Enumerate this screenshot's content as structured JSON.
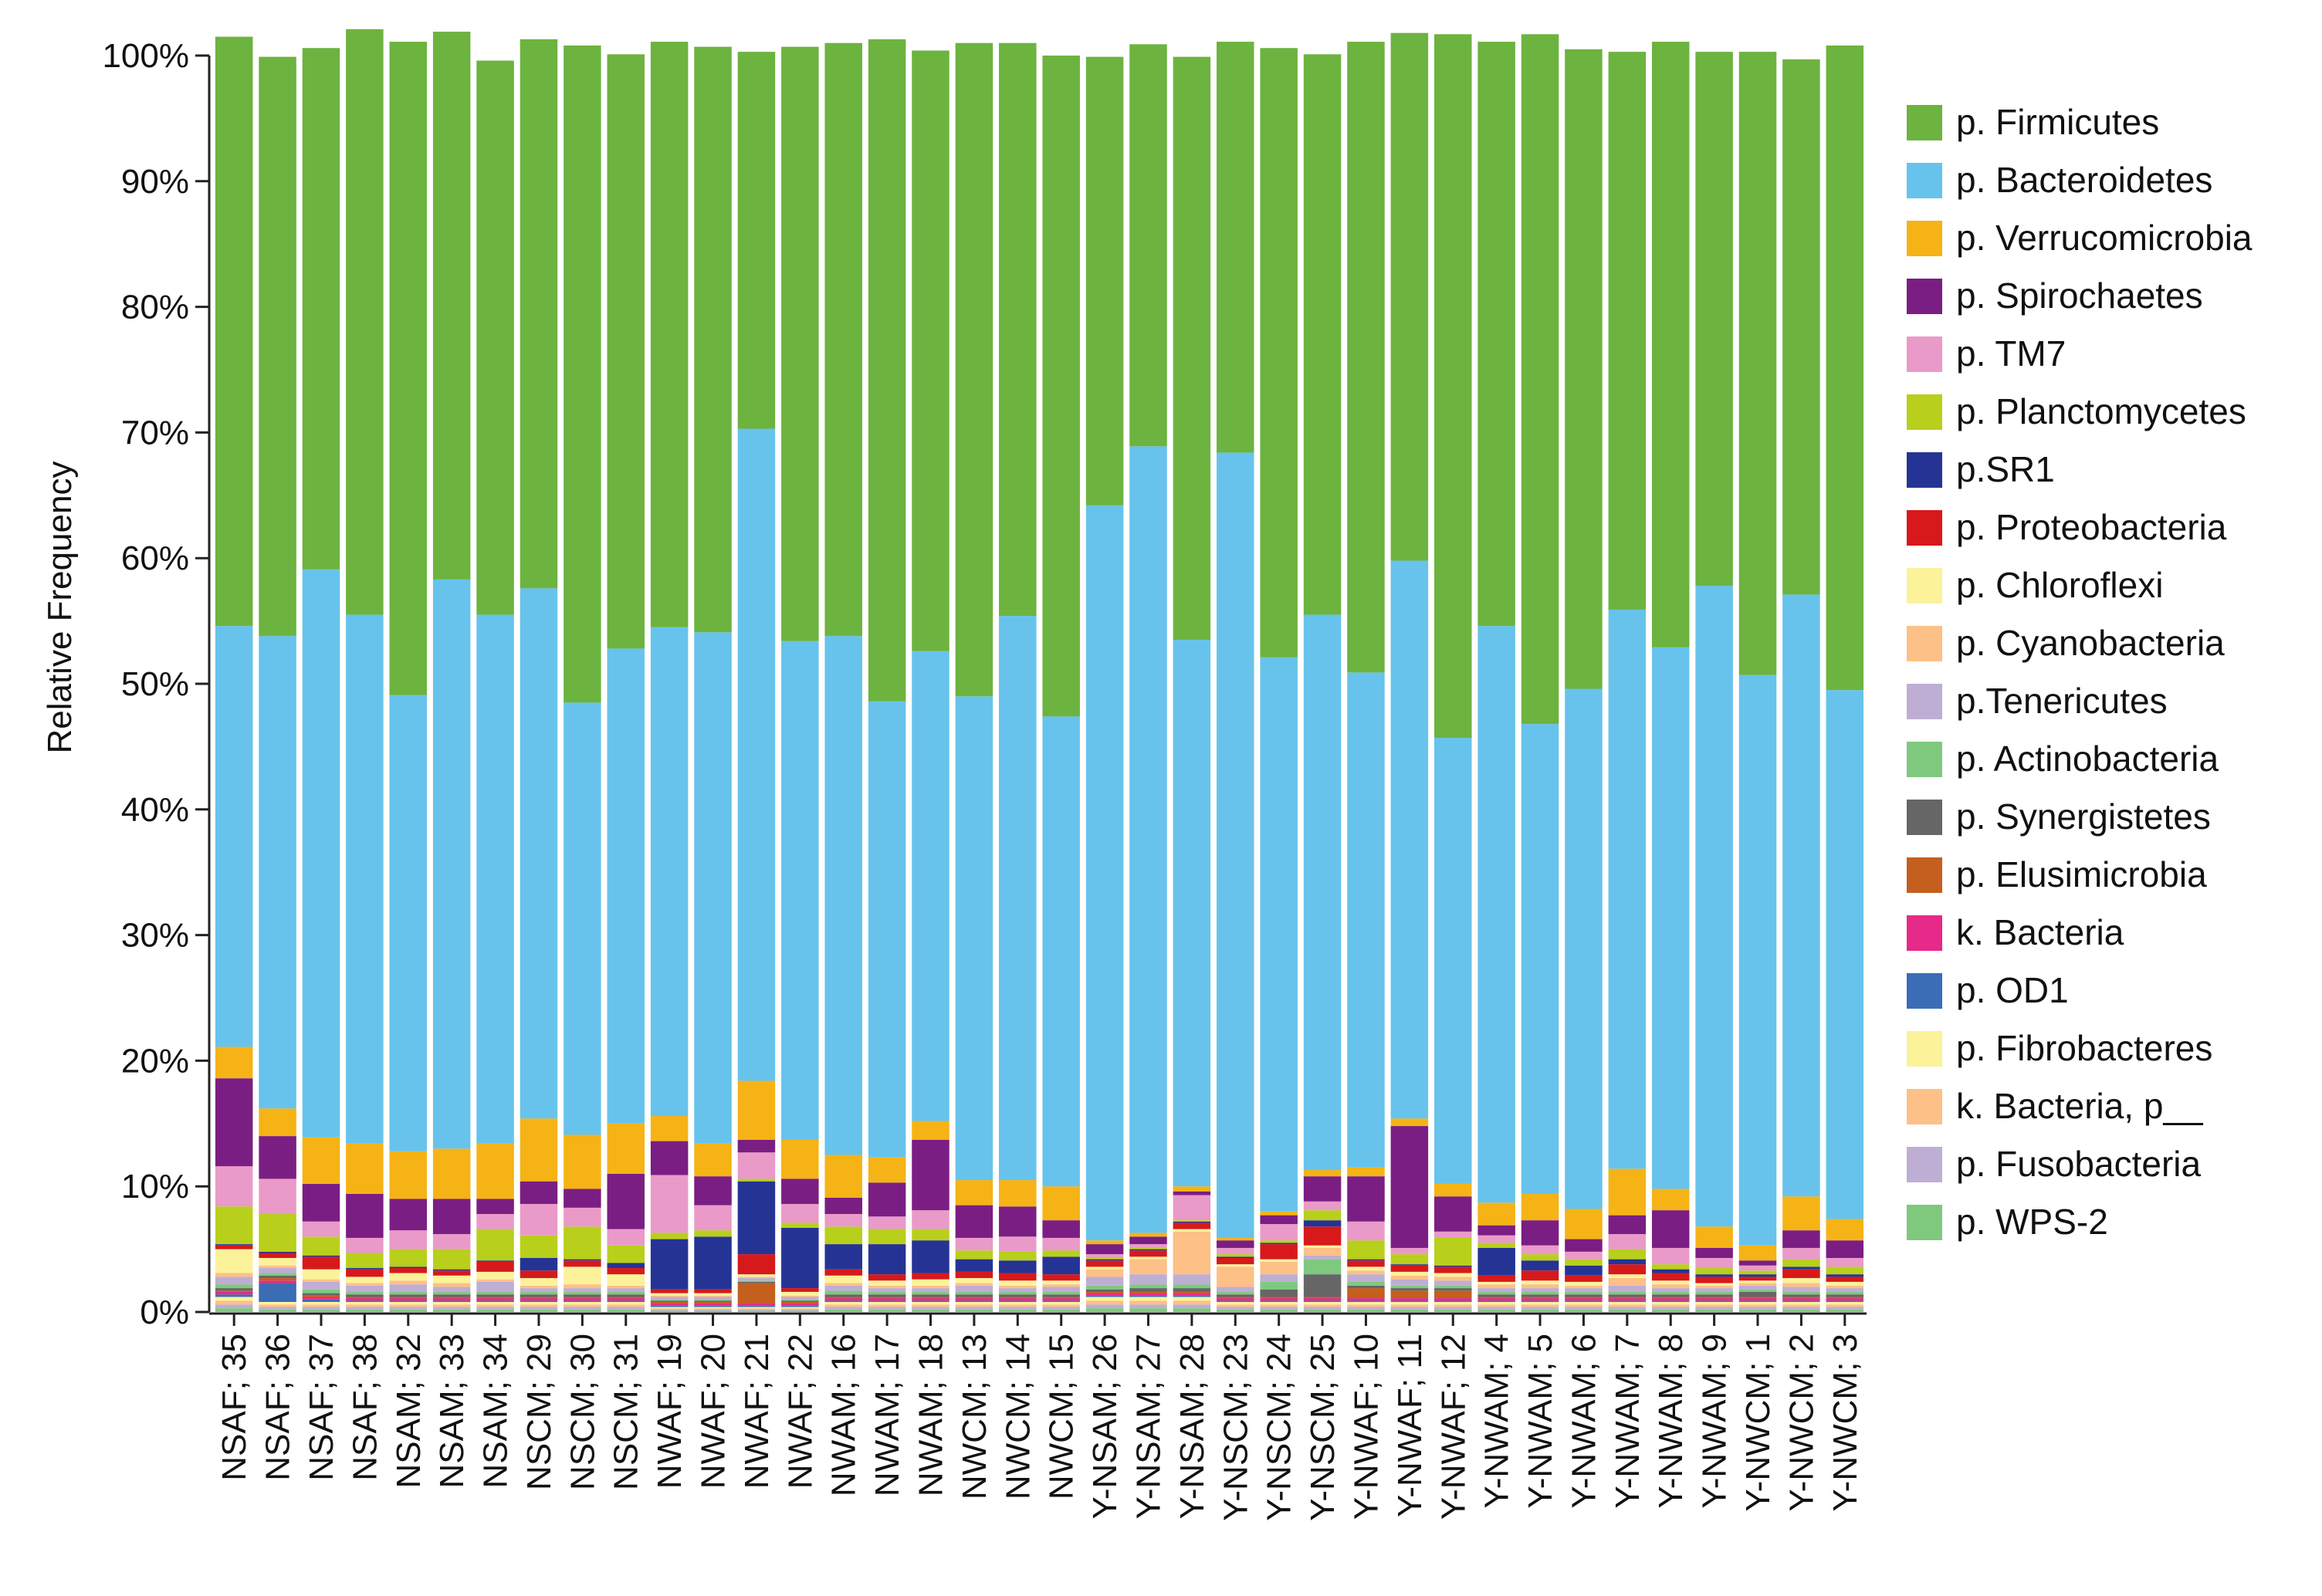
{
  "chart_data": {
    "type": "bar",
    "stacked": true,
    "normalized": true,
    "title": "",
    "xlabel": "",
    "ylabel": "Relative Frequency",
    "ylim": [
      0,
      100
    ],
    "yticks": [
      0,
      10,
      20,
      30,
      40,
      50,
      60,
      70,
      80,
      90,
      100
    ],
    "ytick_labels": [
      "0%",
      "10%",
      "20%",
      "30%",
      "40%",
      "50%",
      "60%",
      "70%",
      "80%",
      "90%",
      "100%"
    ],
    "legend_position": "right",
    "categories": [
      "NSAF; 35",
      "NSAF; 36",
      "NSAF; 37",
      "NSAF; 38",
      "NSAM; 32",
      "NSAM; 33",
      "NSAM; 34",
      "NSCM; 29",
      "NSCM; 30",
      "NSCM; 31",
      "NWAF; 19",
      "NWAF; 20",
      "NWAF; 21",
      "NWAF; 22",
      "NWAM; 16",
      "NWAM; 17",
      "NWAM; 18",
      "NWCM; 13",
      "NWCM; 14",
      "NWCM; 15",
      "Y-NSAM; 26",
      "Y-NSAM; 27",
      "Y-NSAM; 28",
      "Y-NSCM; 23",
      "Y-NSCM; 24",
      "Y-NSCM; 25",
      "Y-NWAF; 10",
      "Y-NWAF; 11",
      "Y-NWAF; 12",
      "Y-NWAM; 4",
      "Y-NWAM; 5",
      "Y-NWAM; 6",
      "Y-NWAM; 7",
      "Y-NWAM; 8",
      "Y-NWAM; 9",
      "Y-NWCM; 1",
      "Y-NWCM; 2",
      "Y-NWCM; 3"
    ],
    "series": [
      {
        "name": "p. WPS-2",
        "color": "#7fc97f",
        "values": [
          0.3,
          0.2,
          0.2,
          0.2,
          0.2,
          0.2,
          0.2,
          0.2,
          0.2,
          0.2,
          0.1,
          0.1,
          0.1,
          0.1,
          0.2,
          0.2,
          0.2,
          0.2,
          0.2,
          0.2,
          0.3,
          0.3,
          0.3,
          0.2,
          0.2,
          0.2,
          0.2,
          0.2,
          0.2,
          0.2,
          0.2,
          0.2,
          0.2,
          0.2,
          0.2,
          0.2,
          0.2,
          0.2
        ]
      },
      {
        "name": "p. Fusobacteria",
        "color": "#beaed4",
        "values": [
          0.3,
          0.2,
          0.2,
          0.2,
          0.2,
          0.2,
          0.2,
          0.2,
          0.2,
          0.2,
          0.1,
          0.1,
          0.1,
          0.1,
          0.2,
          0.2,
          0.2,
          0.2,
          0.2,
          0.2,
          0.3,
          0.3,
          0.3,
          0.2,
          0.2,
          0.2,
          0.2,
          0.2,
          0.2,
          0.2,
          0.2,
          0.2,
          0.2,
          0.2,
          0.2,
          0.2,
          0.2,
          0.2
        ]
      },
      {
        "name": "k. Bacteria, p__",
        "color": "#fdc086",
        "values": [
          0.3,
          0.2,
          0.2,
          0.2,
          0.2,
          0.2,
          0.2,
          0.2,
          0.2,
          0.2,
          0.1,
          0.1,
          0.1,
          0.1,
          0.2,
          0.2,
          0.2,
          0.2,
          0.2,
          0.2,
          0.3,
          0.3,
          0.3,
          0.2,
          0.2,
          0.2,
          0.2,
          0.2,
          0.2,
          0.2,
          0.2,
          0.2,
          0.2,
          0.2,
          0.2,
          0.2,
          0.2,
          0.2
        ]
      },
      {
        "name": "p. Fibrobacteres",
        "color": "#fbf29a",
        "values": [
          0.3,
          0.2,
          0.2,
          0.2,
          0.2,
          0.2,
          0.2,
          0.2,
          0.2,
          0.2,
          0.1,
          0.1,
          0.1,
          0.1,
          0.2,
          0.2,
          0.2,
          0.2,
          0.2,
          0.2,
          0.3,
          0.3,
          0.3,
          0.2,
          0.2,
          0.2,
          0.2,
          0.2,
          0.2,
          0.2,
          0.2,
          0.2,
          0.2,
          0.2,
          0.2,
          0.2,
          0.2,
          0.2
        ]
      },
      {
        "name": "p. OD1",
        "color": "#3a6db5",
        "values": [
          0.2,
          1.5,
          0.2,
          0.1,
          0.1,
          0.1,
          0.1,
          0.1,
          0.1,
          0.1,
          0.1,
          0.1,
          0.1,
          0.1,
          0.1,
          0.1,
          0.1,
          0.1,
          0.1,
          0.1,
          0.1,
          0.1,
          0.1,
          0.1,
          0.1,
          0.1,
          0.1,
          0.1,
          0.1,
          0.1,
          0.1,
          0.1,
          0.1,
          0.1,
          0.1,
          0.1,
          0.1,
          0.1
        ]
      },
      {
        "name": "k. Bacteria",
        "color": "#e7298a",
        "values": [
          0.2,
          0.2,
          0.2,
          0.2,
          0.2,
          0.2,
          0.2,
          0.2,
          0.2,
          0.2,
          0.2,
          0.2,
          0.2,
          0.2,
          0.2,
          0.2,
          0.2,
          0.2,
          0.2,
          0.2,
          0.2,
          0.2,
          0.2,
          0.2,
          0.2,
          0.2,
          0.2,
          0.2,
          0.2,
          0.2,
          0.2,
          0.2,
          0.2,
          0.2,
          0.2,
          0.2,
          0.2,
          0.2
        ]
      },
      {
        "name": "p. Elusimicrobia",
        "color": "#c45f1e",
        "values": [
          0.1,
          0.2,
          0.1,
          0.1,
          0.1,
          0.1,
          0.1,
          0.1,
          0.1,
          0.1,
          0.1,
          0.1,
          1.6,
          0.1,
          0.1,
          0.1,
          0.1,
          0.1,
          0.1,
          0.1,
          0.1,
          0.1,
          0.1,
          0.1,
          0.1,
          0.1,
          0.8,
          0.6,
          0.6,
          0.1,
          0.1,
          0.1,
          0.1,
          0.1,
          0.1,
          0.1,
          0.1,
          0.1
        ]
      },
      {
        "name": "p. Synergistetes",
        "color": "#666666",
        "values": [
          0.2,
          0.2,
          0.2,
          0.2,
          0.2,
          0.2,
          0.2,
          0.2,
          0.2,
          0.2,
          0.1,
          0.1,
          0.1,
          0.1,
          0.2,
          0.2,
          0.2,
          0.2,
          0.2,
          0.2,
          0.2,
          0.3,
          0.3,
          0.2,
          0.6,
          1.8,
          0.2,
          0.2,
          0.2,
          0.2,
          0.2,
          0.2,
          0.2,
          0.2,
          0.2,
          0.4,
          0.2,
          0.2
        ]
      },
      {
        "name": "p. Actinobacteria",
        "color": "#7fc97f",
        "values": [
          0.3,
          0.2,
          0.3,
          0.2,
          0.2,
          0.2,
          0.2,
          0.2,
          0.2,
          0.2,
          0.1,
          0.1,
          0.1,
          0.1,
          0.3,
          0.2,
          0.2,
          0.2,
          0.2,
          0.2,
          0.3,
          0.3,
          0.3,
          0.2,
          0.6,
          1.2,
          0.3,
          0.2,
          0.2,
          0.2,
          0.2,
          0.2,
          0.2,
          0.2,
          0.2,
          0.2,
          0.2,
          0.2
        ]
      },
      {
        "name": "p.Tenericutes",
        "color": "#beaed4",
        "values": [
          0.6,
          0.4,
          0.6,
          0.5,
          0.6,
          0.4,
          0.8,
          0.3,
          0.3,
          0.3,
          0.2,
          0.2,
          0.2,
          0.2,
          0.4,
          0.3,
          0.3,
          0.5,
          0.3,
          0.4,
          0.7,
          0.8,
          0.8,
          0.4,
          0.6,
          0.3,
          0.6,
          0.5,
          0.4,
          0.3,
          0.3,
          0.3,
          0.5,
          0.3,
          0.3,
          0.3,
          0.4,
          0.3
        ]
      },
      {
        "name": "p. Cyanobacteria",
        "color": "#fdc086",
        "values": [
          0.3,
          0.2,
          0.2,
          0.2,
          0.3,
          0.3,
          0.2,
          0.2,
          0.3,
          0.2,
          0.1,
          0.1,
          0.1,
          0.1,
          0.2,
          0.2,
          0.2,
          0.2,
          0.2,
          0.2,
          0.6,
          1.2,
          3.4,
          1.6,
          1.0,
          0.6,
          0.3,
          0.3,
          0.3,
          0.3,
          0.3,
          0.2,
          0.6,
          0.3,
          0.2,
          0.2,
          0.3,
          0.2
        ]
      },
      {
        "name": "p. Chloroflexi",
        "color": "#fbf29a",
        "values": [
          1.9,
          0.6,
          0.8,
          0.5,
          0.6,
          0.6,
          0.6,
          0.6,
          1.4,
          0.9,
          0.2,
          0.2,
          0.2,
          0.3,
          0.6,
          0.4,
          0.5,
          0.4,
          0.4,
          0.3,
          0.2,
          0.2,
          0.2,
          0.2,
          0.2,
          0.2,
          0.3,
          0.3,
          0.3,
          0.2,
          0.3,
          0.3,
          0.3,
          0.3,
          0.2,
          0.2,
          0.4,
          0.3
        ]
      },
      {
        "name": "p. Proteobacteria",
        "color": "#d7191c",
        "values": [
          0.3,
          0.4,
          1.0,
          0.6,
          0.4,
          0.4,
          0.8,
          0.6,
          0.5,
          0.5,
          0.3,
          0.3,
          1.6,
          0.3,
          0.5,
          0.5,
          0.5,
          0.5,
          0.6,
          0.5,
          0.5,
          0.5,
          0.5,
          0.5,
          1.2,
          1.5,
          0.5,
          0.5,
          0.5,
          0.5,
          0.8,
          0.5,
          0.8,
          0.6,
          0.5,
          0.3,
          0.7,
          0.4
        ]
      },
      {
        "name": "p.SR1",
        "color": "#253494",
        "values": [
          0.1,
          0.1,
          0.1,
          0.1,
          0.1,
          0.1,
          0.1,
          1.0,
          0.1,
          0.4,
          4.0,
          4.2,
          5.8,
          4.8,
          2.0,
          2.4,
          2.6,
          1.0,
          1.0,
          1.4,
          0.1,
          0.1,
          0.1,
          0.1,
          0.1,
          0.5,
          0.1,
          0.1,
          0.1,
          2.2,
          0.8,
          0.8,
          0.4,
          0.3,
          0.2,
          0.2,
          0.2,
          0.2
        ]
      },
      {
        "name": "p. Planctomycetes",
        "color": "#b8cf1c",
        "values": [
          3.0,
          3.0,
          1.5,
          1.2,
          1.4,
          1.6,
          2.5,
          1.8,
          2.6,
          1.4,
          0.5,
          0.5,
          0.2,
          0.4,
          1.4,
          1.2,
          0.9,
          0.7,
          0.7,
          0.5,
          0.1,
          0.1,
          0.1,
          0.2,
          0.2,
          0.8,
          1.5,
          0.8,
          2.2,
          0.4,
          0.5,
          0.5,
          0.8,
          0.4,
          0.5,
          0.3,
          0.6,
          0.6
        ]
      },
      {
        "name": "p. TM7",
        "color": "#e99ac8",
        "values": [
          3.2,
          2.8,
          1.2,
          1.2,
          1.5,
          1.2,
          1.2,
          2.5,
          1.5,
          1.3,
          4.6,
          2.0,
          2.1,
          1.5,
          1.0,
          1.0,
          1.5,
          1.0,
          1.2,
          1.0,
          0.3,
          0.3,
          2.0,
          0.5,
          1.3,
          0.7,
          1.5,
          0.5,
          0.5,
          0.6,
          0.7,
          0.6,
          1.2,
          1.3,
          0.8,
          0.4,
          0.9,
          0.7
        ]
      },
      {
        "name": "p. Spirochaetes",
        "color": "#7b1e83",
        "values": [
          7.0,
          3.4,
          3.0,
          3.5,
          2.5,
          2.8,
          1.2,
          1.8,
          1.5,
          4.4,
          2.7,
          2.3,
          1.0,
          2.0,
          1.3,
          2.7,
          5.6,
          2.6,
          2.4,
          1.4,
          0.8,
          0.6,
          0.3,
          0.6,
          0.7,
          2.0,
          3.6,
          9.7,
          2.8,
          0.8,
          2.0,
          1.0,
          1.5,
          3.0,
          0.8,
          0.4,
          1.4,
          1.4
        ]
      },
      {
        "name": "p. Verrucomicrobia",
        "color": "#f5b316",
        "values": [
          2.5,
          2.2,
          3.7,
          4.0,
          3.8,
          4.0,
          4.4,
          5.0,
          4.3,
          4.0,
          2.0,
          2.6,
          4.7,
          3.1,
          3.4,
          2.0,
          1.5,
          2.0,
          2.1,
          2.7,
          0.3,
          0.3,
          0.4,
          0.2,
          0.3,
          0.5,
          0.7,
          0.6,
          1.0,
          1.8,
          2.1,
          2.4,
          3.7,
          1.7,
          1.7,
          1.2,
          2.7,
          1.7
        ]
      },
      {
        "name": "p. Bacteroidetes",
        "color": "#67c3ec",
        "values": [
          33.5,
          37.6,
          45.2,
          42.1,
          36.3,
          45.3,
          42.1,
          42.2,
          34.4,
          37.8,
          38.9,
          40.7,
          51.9,
          39.7,
          41.3,
          36.3,
          37.4,
          38.5,
          44.9,
          37.4,
          58.5,
          62.6,
          43.5,
          62.5,
          44.1,
          44.2,
          39.4,
          44.4,
          35.5,
          45.9,
          37.4,
          41.4,
          44.5,
          43.1,
          51.0,
          45.4,
          47.9,
          42.1
        ]
      },
      {
        "name": "p. Firmicutes",
        "color": "#6db33f",
        "values": [
          46.9,
          46.1,
          41.5,
          46.6,
          52.0,
          43.6,
          44.1,
          43.7,
          52.3,
          47.3,
          46.6,
          46.6,
          30.0,
          47.3,
          47.2,
          52.7,
          47.8,
          52.0,
          45.6,
          52.6,
          35.7,
          32.0,
          46.4,
          32.7,
          48.5,
          44.6,
          50.2,
          42.0,
          56.0,
          46.5,
          54.9,
          50.9,
          44.4,
          48.2,
          42.5,
          49.6,
          42.6,
          51.3
        ]
      }
    ]
  }
}
